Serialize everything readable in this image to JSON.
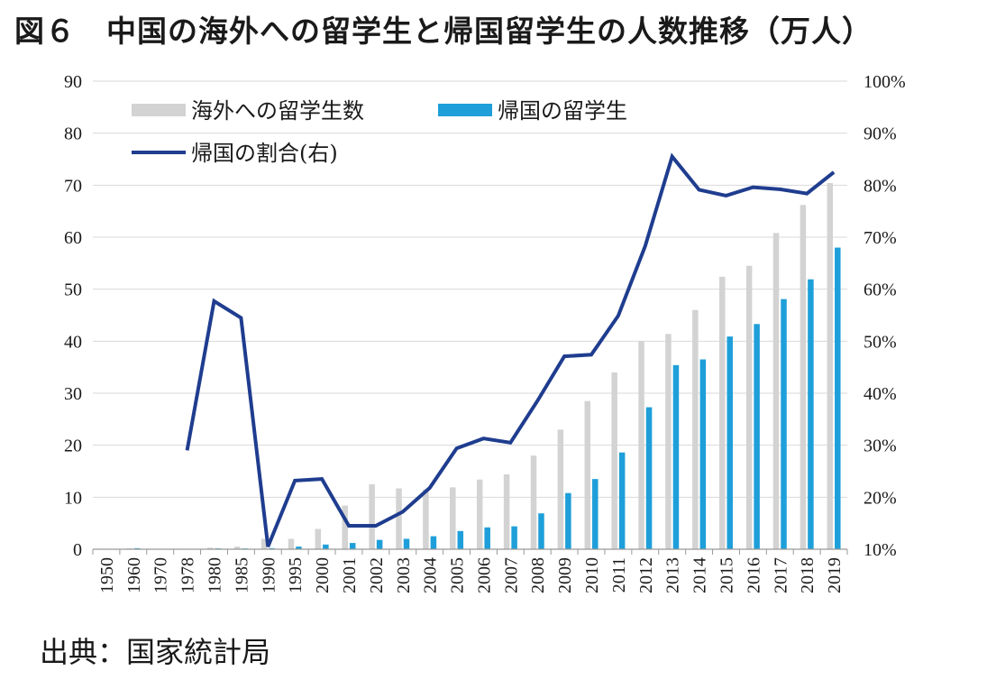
{
  "header": {
    "figure_label": "図６",
    "title_text": "中国の海外への留学生と帰国留学生の人数推移（万人）"
  },
  "footer": {
    "source": "出典：国家統計局"
  },
  "colors": {
    "abroad": "#d3d3d3",
    "returned": "#1e9fd9",
    "ratio_line": "#1f3d8f",
    "grid": "#d9d9d9"
  },
  "chart_data": {
    "type": "bar",
    "title": "中国の海外への留学生と帰国留学生の人数推移（万人）",
    "categories": [
      "1950",
      "1960",
      "1970",
      "1978",
      "1980",
      "1985",
      "1990",
      "1995",
      "2000",
      "2001",
      "2002",
      "2003",
      "2004",
      "2005",
      "2006",
      "2007",
      "2008",
      "2009",
      "2010",
      "2011",
      "2012",
      "2013",
      "2014",
      "2015",
      "2016",
      "2017",
      "2018",
      "2019"
    ],
    "series": [
      {
        "name": "海外への留学生数",
        "type": "bar",
        "axis": "left",
        "values": [
          0.1,
          0.2,
          0,
          0.1,
          0.3,
          0.5,
          2.0,
          2.0,
          3.9,
          8.4,
          12.5,
          11.7,
          11.5,
          11.9,
          13.4,
          14.4,
          18.0,
          23.0,
          28.5,
          34.0,
          40.0,
          41.4,
          46.0,
          52.4,
          54.5,
          60.8,
          66.2,
          70.4
        ]
      },
      {
        "name": "帰国の留学生",
        "type": "bar",
        "axis": "left",
        "values": [
          0.05,
          0.2,
          0,
          0.03,
          0.16,
          0.15,
          0.2,
          0.5,
          0.9,
          1.2,
          1.8,
          2.0,
          2.5,
          3.5,
          4.2,
          4.4,
          6.9,
          10.8,
          13.5,
          18.6,
          27.3,
          35.4,
          36.5,
          40.9,
          43.3,
          48.1,
          51.9,
          58.0
        ]
      },
      {
        "name": "帰国の割合(右)",
        "type": "line",
        "axis": "right",
        "values": [
          null,
          null,
          null,
          29,
          57.7,
          54.5,
          10.5,
          23.2,
          23.5,
          14.5,
          14.5,
          17.2,
          21.8,
          29.4,
          31.3,
          30.5,
          38.5,
          47.1,
          47.4,
          54.9,
          68.3,
          85.5,
          79.1,
          78.0,
          79.6,
          79.2,
          78.4,
          82.5
        ]
      }
    ],
    "ylim_left": [
      0,
      90
    ],
    "yticks_left": [
      "0",
      "10",
      "20",
      "30",
      "40",
      "50",
      "60",
      "70",
      "80",
      "90"
    ],
    "ylim_right": [
      10,
      100
    ],
    "yticks_right": [
      "10%",
      "20%",
      "30%",
      "40%",
      "50%",
      "60%",
      "70%",
      "80%",
      "90%",
      "100%"
    ],
    "grid": true,
    "legend_position": "top-left"
  }
}
